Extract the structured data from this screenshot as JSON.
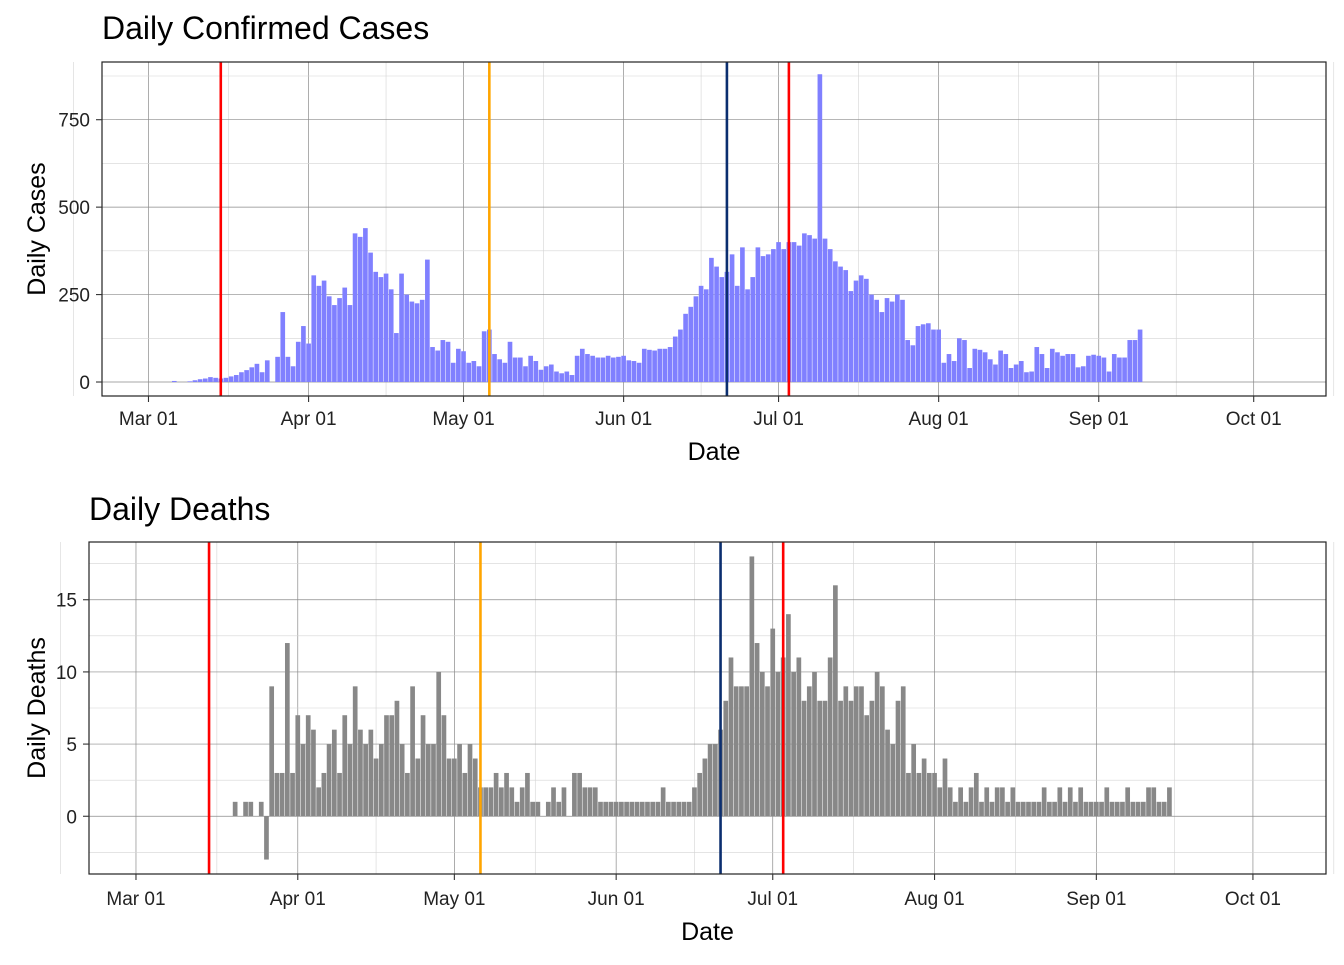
{
  "chart_data": [
    {
      "type": "bar",
      "title": "Daily Confirmed Cases",
      "xlabel": "Date",
      "ylabel": "Daily Cases",
      "bar_color": "#8080ff",
      "ylim": [
        -40,
        915
      ],
      "xlim": [
        "2020-02-21",
        "2020-10-15"
      ],
      "x_ticks": [
        "Mar 01",
        "Apr 01",
        "May 01",
        "Jun 01",
        "Jul 01",
        "Aug 01",
        "Sep 01",
        "Oct 01"
      ],
      "y_ticks": [
        0,
        250,
        500,
        750
      ],
      "grid": true,
      "start_date": "2020-03-06",
      "values": [
        3,
        0,
        0,
        2,
        5,
        8,
        10,
        14,
        12,
        10,
        12,
        16,
        20,
        28,
        34,
        42,
        52,
        28,
        62,
        0,
        72,
        200,
        72,
        45,
        115,
        160,
        110,
        305,
        275,
        290,
        245,
        220,
        240,
        270,
        220,
        425,
        415,
        440,
        370,
        315,
        300,
        310,
        265,
        140,
        310,
        250,
        230,
        225,
        235,
        350,
        100,
        90,
        120,
        115,
        55,
        95,
        88,
        55,
        60,
        45,
        145,
        150,
        80,
        65,
        55,
        115,
        70,
        70,
        45,
        75,
        60,
        35,
        45,
        50,
        30,
        25,
        30,
        20,
        75,
        95,
        80,
        75,
        70,
        70,
        75,
        70,
        72,
        75,
        62,
        60,
        55,
        95,
        92,
        90,
        95,
        95,
        100,
        130,
        150,
        195,
        215,
        245,
        275,
        265,
        355,
        330,
        300,
        315,
        365,
        275,
        385,
        265,
        300,
        385,
        360,
        365,
        380,
        400,
        380,
        400,
        400,
        390,
        425,
        420,
        410,
        880,
        410,
        380,
        345,
        330,
        320,
        260,
        290,
        305,
        295,
        250,
        235,
        200,
        240,
        230,
        250,
        235,
        120,
        105,
        160,
        165,
        168,
        150,
        150,
        55,
        80,
        60,
        125,
        120,
        40,
        95,
        92,
        85,
        65,
        50,
        90,
        80,
        40,
        50,
        60,
        28,
        30,
        100,
        80,
        40,
        95,
        85,
        75,
        80,
        80,
        42,
        45,
        75,
        78,
        75,
        70,
        30,
        80,
        70,
        70,
        120,
        120,
        150
      ],
      "vlines": [
        {
          "date": "2020-03-15",
          "color": "#ff0000"
        },
        {
          "date": "2020-05-06",
          "color": "#ffa500"
        },
        {
          "date": "2020-06-21",
          "color": "#0b2e6f"
        },
        {
          "date": "2020-07-03",
          "color": "#ff0000"
        }
      ]
    },
    {
      "type": "bar",
      "title": "Daily Deaths",
      "xlabel": "Date",
      "ylabel": "Daily Deaths",
      "bar_color": "#888888",
      "ylim": [
        -4,
        19
      ],
      "xlim": [
        "2020-02-21",
        "2020-10-15"
      ],
      "x_ticks": [
        "Mar 01",
        "Apr 01",
        "May 01",
        "Jun 01",
        "Jul 01",
        "Aug 01",
        "Sep 01",
        "Oct 01"
      ],
      "y_ticks": [
        0,
        5,
        10,
        15
      ],
      "grid": true,
      "start_date": "2020-03-20",
      "values": [
        1,
        0,
        1,
        1,
        0,
        1,
        -3,
        9,
        3,
        3,
        12,
        3,
        7,
        5,
        7,
        6,
        2,
        3,
        5,
        6,
        3,
        7,
        5,
        9,
        6,
        5,
        6,
        4,
        5,
        7,
        7,
        8,
        5,
        3,
        9,
        4,
        7,
        5,
        5,
        10,
        7,
        4,
        4,
        5,
        3,
        5,
        4,
        2,
        2,
        2,
        3,
        2,
        3,
        2,
        1,
        2,
        3,
        1,
        1,
        0,
        1,
        2,
        1,
        2,
        0,
        3,
        3,
        2,
        2,
        2,
        1,
        1,
        1,
        1,
        1,
        1,
        1,
        1,
        1,
        1,
        1,
        1,
        2,
        1,
        1,
        1,
        1,
        1,
        2,
        3,
        4,
        5,
        5,
        6,
        8,
        11,
        9,
        9,
        9,
        18,
        12,
        10,
        9,
        13,
        10,
        11,
        14,
        10,
        11,
        8,
        9,
        10,
        8,
        8,
        11,
        16,
        8,
        9,
        8,
        9,
        9,
        7,
        8,
        10,
        9,
        6,
        5,
        8,
        9,
        3,
        5,
        3,
        4,
        3,
        3,
        2,
        4,
        2,
        1,
        2,
        1,
        2,
        3,
        1,
        2,
        1,
        2,
        2,
        1,
        2,
        1,
        1,
        1,
        1,
        1,
        2,
        1,
        1,
        2,
        1,
        2,
        1,
        2,
        1,
        1,
        1,
        1,
        2,
        1,
        1,
        1,
        2,
        1,
        1,
        1,
        2,
        2,
        1,
        1,
        2
      ],
      "vlines": [
        {
          "date": "2020-03-15",
          "color": "#ff0000"
        },
        {
          "date": "2020-05-06",
          "color": "#ffa500"
        },
        {
          "date": "2020-06-21",
          "color": "#0b2e6f"
        },
        {
          "date": "2020-07-03",
          "color": "#ff0000"
        }
      ]
    }
  ]
}
